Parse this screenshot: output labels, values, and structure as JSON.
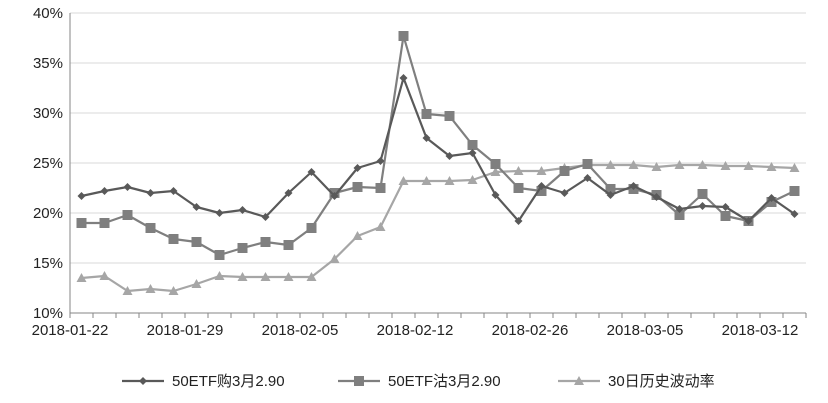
{
  "chart_data": {
    "type": "line",
    "title": "",
    "xlabel": "",
    "ylabel": "",
    "ylim": [
      0.1,
      0.4
    ],
    "yticks": [
      0.1,
      0.15,
      0.2,
      0.25,
      0.3,
      0.35,
      0.4
    ],
    "ytick_labels": [
      "10%",
      "15%",
      "20%",
      "25%",
      "30%",
      "35%",
      "40%"
    ],
    "xtick_labels": [
      "2018-01-22",
      "2018-01-29",
      "2018-02-05",
      "2018-02-12",
      "2018-02-26",
      "2018-03-05",
      "2018-03-12"
    ],
    "xtick_index": [
      0,
      5,
      10,
      15,
      20,
      25,
      30
    ],
    "x": [
      "2018-01-22",
      "2018-01-23",
      "2018-01-24",
      "2018-01-25",
      "2018-01-26",
      "2018-01-29",
      "2018-01-30",
      "2018-01-31",
      "2018-02-01",
      "2018-02-02",
      "2018-02-05",
      "2018-02-06",
      "2018-02-07",
      "2018-02-08",
      "2018-02-09",
      "2018-02-12",
      "2018-02-13",
      "2018-02-14",
      "2018-02-22",
      "2018-02-23",
      "2018-02-26",
      "2018-02-27",
      "2018-02-28",
      "2018-03-01",
      "2018-03-02",
      "2018-03-05",
      "2018-03-06",
      "2018-03-07",
      "2018-03-08",
      "2018-03-09",
      "2018-03-12",
      "2018-03-13"
    ],
    "grid": "horizontal",
    "legend_position": "bottom",
    "series": [
      {
        "name": "50ETF购3月2.90",
        "color": "#595959",
        "marker": "diamond",
        "values": [
          0.217,
          0.222,
          0.226,
          0.22,
          0.222,
          0.206,
          0.2,
          0.203,
          0.196,
          0.22,
          0.241,
          0.217,
          0.245,
          0.252,
          0.335,
          0.275,
          0.257,
          0.26,
          0.218,
          0.192,
          0.227,
          0.22,
          0.235,
          0.218,
          0.227,
          0.216,
          0.204,
          0.207,
          0.206,
          0.192,
          0.215,
          0.199
        ]
      },
      {
        "name": "50ETF沽3月2.90",
        "color": "#7f7f7f",
        "marker": "square",
        "values": [
          0.19,
          0.19,
          0.198,
          0.185,
          0.174,
          0.171,
          0.158,
          0.165,
          0.171,
          0.168,
          0.185,
          0.22,
          0.226,
          0.225,
          0.377,
          0.299,
          0.297,
          0.268,
          0.249,
          0.225,
          0.222,
          0.242,
          0.249,
          0.224,
          0.224,
          0.218,
          0.198,
          0.219,
          0.197,
          0.192,
          0.211,
          0.222
        ]
      },
      {
        "name": "30日历史波动率",
        "color": "#a6a6a6",
        "marker": "triangle",
        "values": [
          0.135,
          0.137,
          0.122,
          0.124,
          0.122,
          0.129,
          0.137,
          0.136,
          0.136,
          0.136,
          0.136,
          0.154,
          0.177,
          0.186,
          0.232,
          0.232,
          0.232,
          0.233,
          0.241,
          0.242,
          0.242,
          0.245,
          0.248,
          0.248,
          0.248,
          0.246,
          0.248,
          0.248,
          0.247,
          0.247,
          0.246,
          0.245
        ]
      }
    ]
  }
}
